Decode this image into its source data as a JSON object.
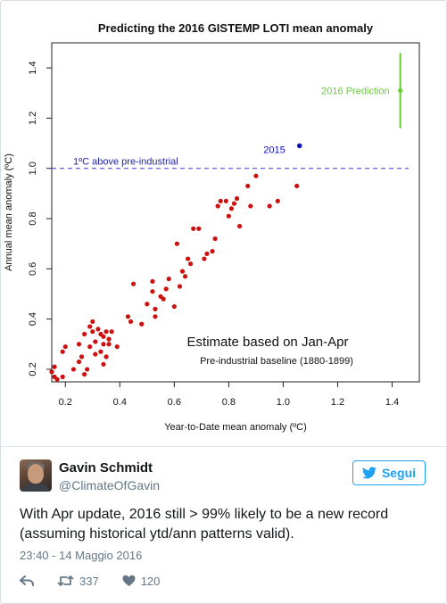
{
  "chart_data": {
    "type": "scatter",
    "title": "Predicting the 2016 GISTEMP LOTI mean anomaly",
    "xlabel": "Year-to-Date mean anomaly (ºC)",
    "ylabel": "Annual mean anomaly (ºC)",
    "xlim": [
      0.15,
      1.5
    ],
    "ylim": [
      0.15,
      1.5
    ],
    "x_ticks": [
      "0.2",
      "0.4",
      "0.6",
      "0.8",
      "1.0",
      "1.2",
      "1.4"
    ],
    "y_ticks": [
      "0.2",
      "0.4",
      "0.6",
      "0.8",
      "1.0",
      "1.2",
      "1.4"
    ],
    "grid": false,
    "threshold": {
      "y": 1.0,
      "label": "1ºC above pre-industrial",
      "color": "#3b3bd6"
    },
    "annotation_main": "Estimate based on Jan-Apr",
    "annotation_sub": "Pre-industrial baseline (1880-1899)",
    "highlight_2015": {
      "label": "2015",
      "x": 1.06,
      "y": 1.09,
      "color": "#1111bb"
    },
    "prediction": {
      "label": "2016 Prediction",
      "x": 1.43,
      "y": 1.31,
      "low": 1.16,
      "high": 1.46,
      "color": "#66cc33"
    },
    "series": [
      {
        "color": "#cc1111",
        "points": [
          [
            0.15,
            0.19
          ],
          [
            0.16,
            0.21
          ],
          [
            0.16,
            0.17
          ],
          [
            0.17,
            0.16
          ],
          [
            0.19,
            0.17
          ],
          [
            0.19,
            0.27
          ],
          [
            0.2,
            0.29
          ],
          [
            0.23,
            0.2
          ],
          [
            0.25,
            0.3
          ],
          [
            0.25,
            0.23
          ],
          [
            0.26,
            0.25
          ],
          [
            0.27,
            0.34
          ],
          [
            0.27,
            0.18
          ],
          [
            0.28,
            0.2
          ],
          [
            0.29,
            0.37
          ],
          [
            0.29,
            0.29
          ],
          [
            0.3,
            0.39
          ],
          [
            0.3,
            0.35
          ],
          [
            0.31,
            0.31
          ],
          [
            0.31,
            0.26
          ],
          [
            0.32,
            0.36
          ],
          [
            0.33,
            0.34
          ],
          [
            0.33,
            0.27
          ],
          [
            0.34,
            0.33
          ],
          [
            0.34,
            0.3
          ],
          [
            0.34,
            0.22
          ],
          [
            0.35,
            0.35
          ],
          [
            0.35,
            0.25
          ],
          [
            0.36,
            0.3
          ],
          [
            0.36,
            0.32
          ],
          [
            0.37,
            0.35
          ],
          [
            0.39,
            0.29
          ],
          [
            0.43,
            0.41
          ],
          [
            0.44,
            0.39
          ],
          [
            0.45,
            0.54
          ],
          [
            0.48,
            0.38
          ],
          [
            0.5,
            0.46
          ],
          [
            0.52,
            0.55
          ],
          [
            0.52,
            0.51
          ],
          [
            0.53,
            0.44
          ],
          [
            0.53,
            0.41
          ],
          [
            0.55,
            0.49
          ],
          [
            0.56,
            0.48
          ],
          [
            0.57,
            0.52
          ],
          [
            0.58,
            0.56
          ],
          [
            0.6,
            0.45
          ],
          [
            0.61,
            0.7
          ],
          [
            0.62,
            0.53
          ],
          [
            0.63,
            0.59
          ],
          [
            0.64,
            0.57
          ],
          [
            0.65,
            0.64
          ],
          [
            0.66,
            0.62
          ],
          [
            0.67,
            0.76
          ],
          [
            0.69,
            0.76
          ],
          [
            0.71,
            0.64
          ],
          [
            0.72,
            0.66
          ],
          [
            0.74,
            0.67
          ],
          [
            0.75,
            0.72
          ],
          [
            0.76,
            0.85
          ],
          [
            0.77,
            0.87
          ],
          [
            0.79,
            0.87
          ],
          [
            0.8,
            0.81
          ],
          [
            0.81,
            0.84
          ],
          [
            0.82,
            0.86
          ],
          [
            0.83,
            0.88
          ],
          [
            0.84,
            0.77
          ],
          [
            0.87,
            0.93
          ],
          [
            0.88,
            0.85
          ],
          [
            0.9,
            0.97
          ],
          [
            0.95,
            0.85
          ],
          [
            0.98,
            0.87
          ],
          [
            1.05,
            0.93
          ]
        ]
      }
    ]
  },
  "tweet": {
    "name": "Gavin Schmidt",
    "handle": "@ClimateOfGavin",
    "follow_label": "Segui",
    "text": "With Apr update, 2016 still > 99% likely to be a new record (assuming historical ytd/ann patterns valid).",
    "timestamp": "23:40 - 14 Maggio 2016",
    "retweets": "337",
    "likes": "120"
  }
}
